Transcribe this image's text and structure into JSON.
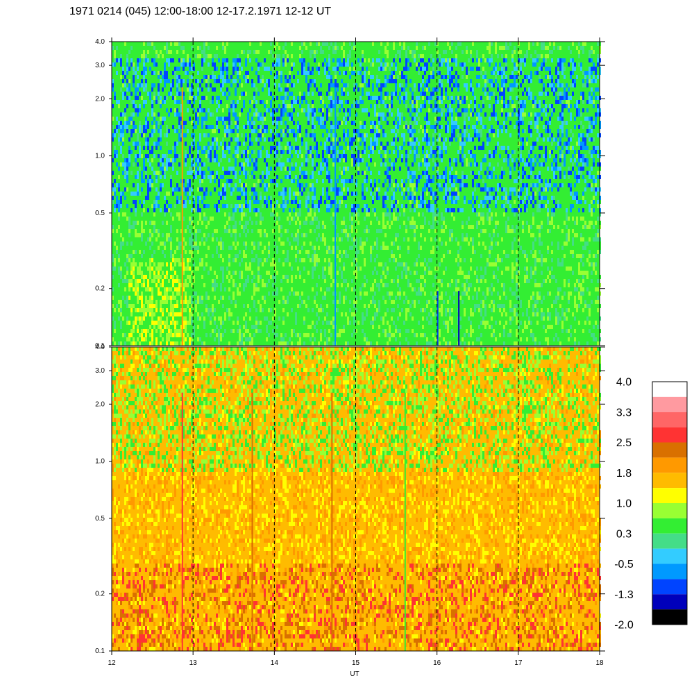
{
  "title": "1971 0214 (045) 12:00-18:00 12-17.2.1971  12-12 UT",
  "chart_data": [
    {
      "type": "heatmap",
      "panel": "upper",
      "x_range": [
        12,
        18
      ],
      "y_range": [
        0.1,
        4.0
      ],
      "y_scale": "log",
      "y_ticks": [
        "0.1",
        "0.2",
        "0.5",
        "1.0",
        "2.0",
        "3.0",
        "4.0"
      ],
      "x_ticks": [
        "12",
        "13",
        "14",
        "15",
        "16",
        "17",
        "18"
      ],
      "xlabel": "",
      "dashed_hour_lines": [
        13,
        14,
        15,
        16,
        17
      ],
      "dominant_values": "mostly green (~0.3) with blue patches (~-1.3 to -0.5) at 0.7-3.0, yellow/green (~1.0) near 0.1-0.4 around 12.3-12.9"
    },
    {
      "type": "heatmap",
      "panel": "lower",
      "x_range": [
        12,
        18
      ],
      "y_range": [
        0.1,
        4.0
      ],
      "y_scale": "log",
      "y_ticks": [
        "0.1",
        "0.2",
        "0.5",
        "1.0",
        "2.0",
        "3.0",
        "4.0"
      ],
      "x_ticks": [
        "12",
        "13",
        "14",
        "15",
        "16",
        "17",
        "18"
      ],
      "xlabel": "UT",
      "dashed_hour_lines": [
        13,
        14,
        15,
        16,
        17
      ],
      "dominant_values": "mostly orange/yellow (~1.0 to 1.8) with green streaks (~0.3) at high values, dark orange (~2.2) near 0.1-0.3"
    }
  ],
  "colorbar": {
    "labels": [
      "4.0",
      "3.3",
      "2.5",
      "1.8",
      "1.0",
      "0.3",
      "-0.5",
      "-1.3",
      "-2.0"
    ],
    "colors": [
      "#ffffff",
      "#ff9aa0",
      "#ff6666",
      "#ff3333",
      "#d97000",
      "#ff9900",
      "#ffbb00",
      "#ffff00",
      "#99ff33",
      "#33ee33",
      "#44dd88",
      "#33ccff",
      "#0099ff",
      "#0044ff",
      "#0000bb",
      "#000000"
    ]
  },
  "palette": {
    "upper_base": [
      "#33ee33",
      "#44dd88",
      "#99ff33"
    ],
    "upper_blue": [
      "#0099ff",
      "#0044ff",
      "#33ccff"
    ],
    "lower_base": [
      "#ff9900",
      "#ffbb00",
      "#ffff00"
    ],
    "lower_hot": [
      "#d97000",
      "#ff3333"
    ],
    "lower_cool": [
      "#99ff33",
      "#33ee33"
    ]
  }
}
